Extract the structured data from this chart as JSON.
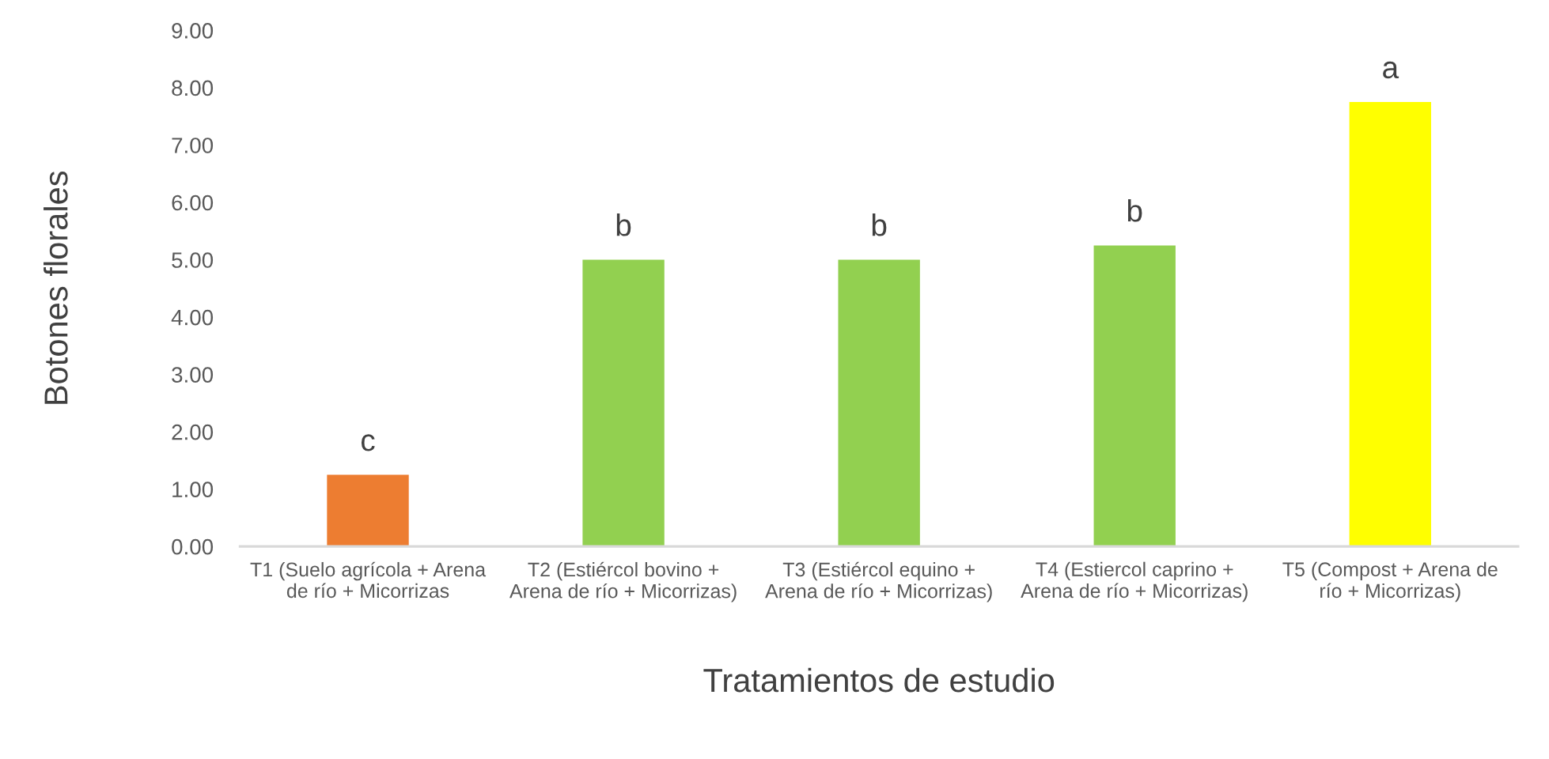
{
  "chart_data": {
    "type": "bar",
    "categories": [
      "T1 (Suelo agrícola + Arena\nde río + Micorrizas",
      "T2 (Estiércol bovino +\nArena de río + Micorrizas)",
      "T3 (Estiércol equino +\nArena de río + Micorrizas)",
      "T4 (Estiercol caprino +\nArena de río + Micorrizas)",
      "T5 (Compost + Arena de\nrío + Micorrizas)"
    ],
    "values": [
      1.25,
      5.0,
      5.0,
      5.25,
      7.75
    ],
    "colors": [
      "#ed7d31",
      "#92d050",
      "#92d050",
      "#92d050",
      "#ffff00"
    ],
    "value_labels": [
      "c",
      "b",
      "b",
      "b",
      "a"
    ],
    "xlabel": "Tratamientos de estudio",
    "ylabel": "Botones florales",
    "ylim": [
      0,
      9
    ],
    "yticks": [
      {
        "value": 0,
        "label": "0.00"
      },
      {
        "value": 1,
        "label": "1.00"
      },
      {
        "value": 2,
        "label": "2.00"
      },
      {
        "value": 3,
        "label": "3.00"
      },
      {
        "value": 4,
        "label": "4.00"
      },
      {
        "value": 5,
        "label": "5.00"
      },
      {
        "value": 6,
        "label": "6.00"
      },
      {
        "value": 7,
        "label": "7.00"
      },
      {
        "value": 8,
        "label": "8.00"
      },
      {
        "value": 9,
        "label": "9.00"
      }
    ],
    "grid": false
  }
}
